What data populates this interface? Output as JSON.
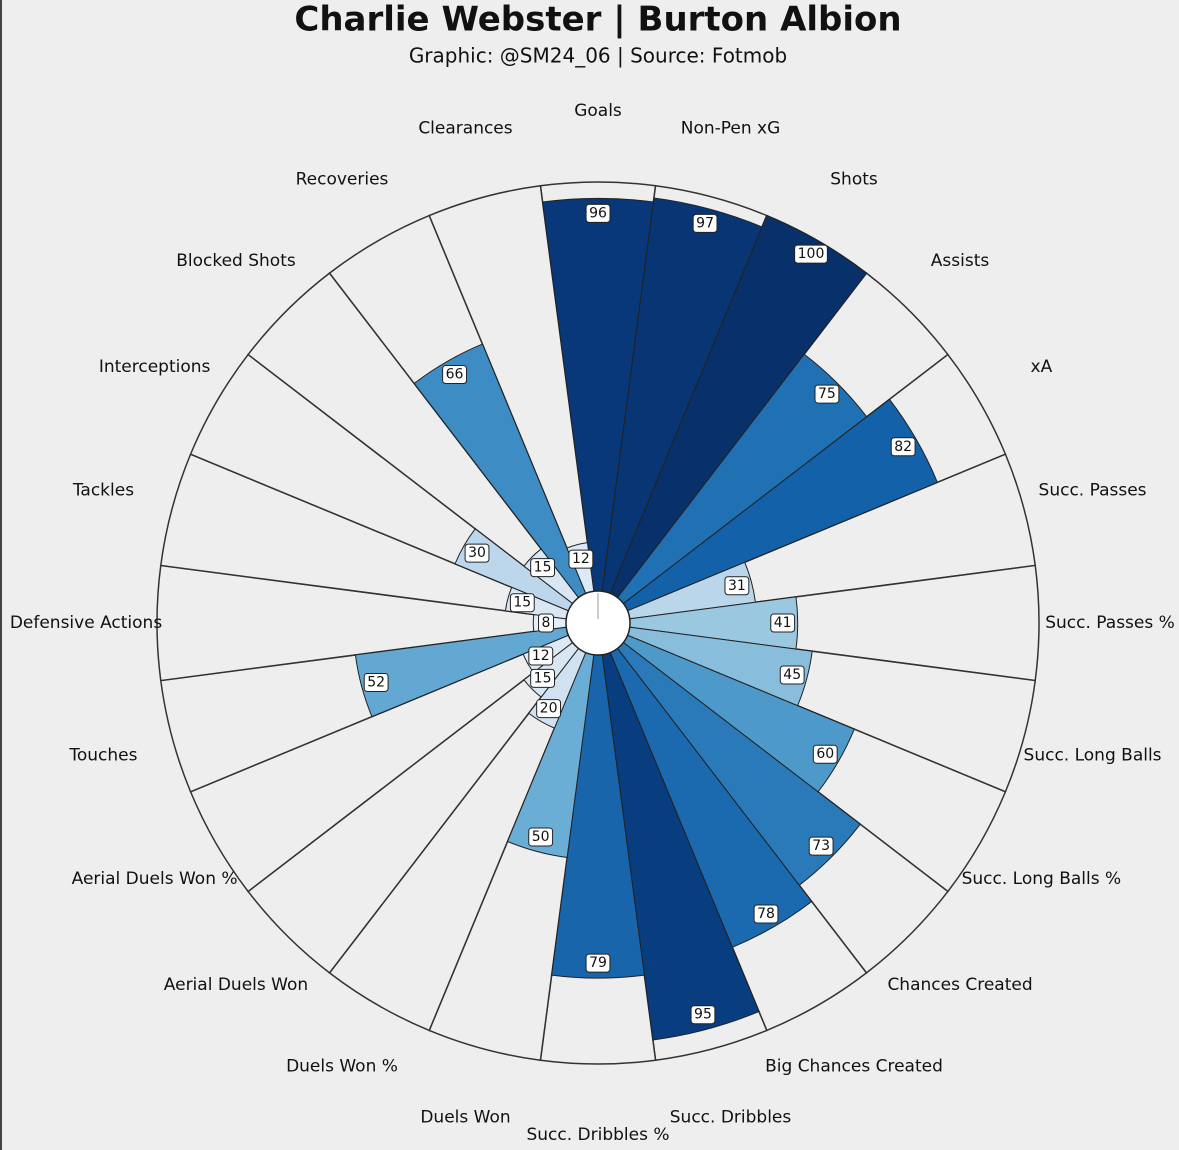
{
  "chart_data": {
    "type": "polar_bar",
    "title": "Charlie Webster | Burton Albion",
    "subtitle": "Graphic: @SM24_06 | Source: Fotmob",
    "categories": [
      "Goals",
      "Non-Pen xG",
      "Shots",
      "Assists",
      "xA",
      "Succ. Passes",
      "Succ. Passes %",
      "Succ. Long Balls",
      "Succ. Long Balls %",
      "Chances Created",
      "Big Chances Created",
      "Succ. Dribbles",
      "Succ. Dribbles %",
      "Duels Won",
      "Duels Won %",
      "Aerial Duels Won",
      "Aerial Duels Won %",
      "Touches",
      "Defensive Actions",
      "Tackles",
      "Interceptions",
      "Blocked Shots",
      "Recoveries",
      "Clearances"
    ],
    "values": [
      96,
      97,
      100,
      75,
      82,
      31,
      41,
      45,
      60,
      73,
      78,
      95,
      79,
      50,
      20,
      15,
      12,
      52,
      8,
      15,
      30,
      15,
      66,
      12
    ],
    "colors": [
      "#08377a",
      "#083674",
      "#08306b",
      "#2070b4",
      "#1361a9",
      "#bad6eb",
      "#9ac8e0",
      "#88bedc",
      "#4d99ca",
      "#2a7ab9",
      "#1b69af",
      "#083d7f",
      "#1865ac",
      "#6aaed6",
      "#d0e1f2",
      "#d9e7f5",
      "#dce9f6",
      "#62a8d3",
      "#e3eef9",
      "#d9e7f5",
      "#bcd7eb",
      "#d9e7f5",
      "#3d8dc4",
      "#dce9f6"
    ],
    "rlim": [
      0,
      100
    ]
  }
}
